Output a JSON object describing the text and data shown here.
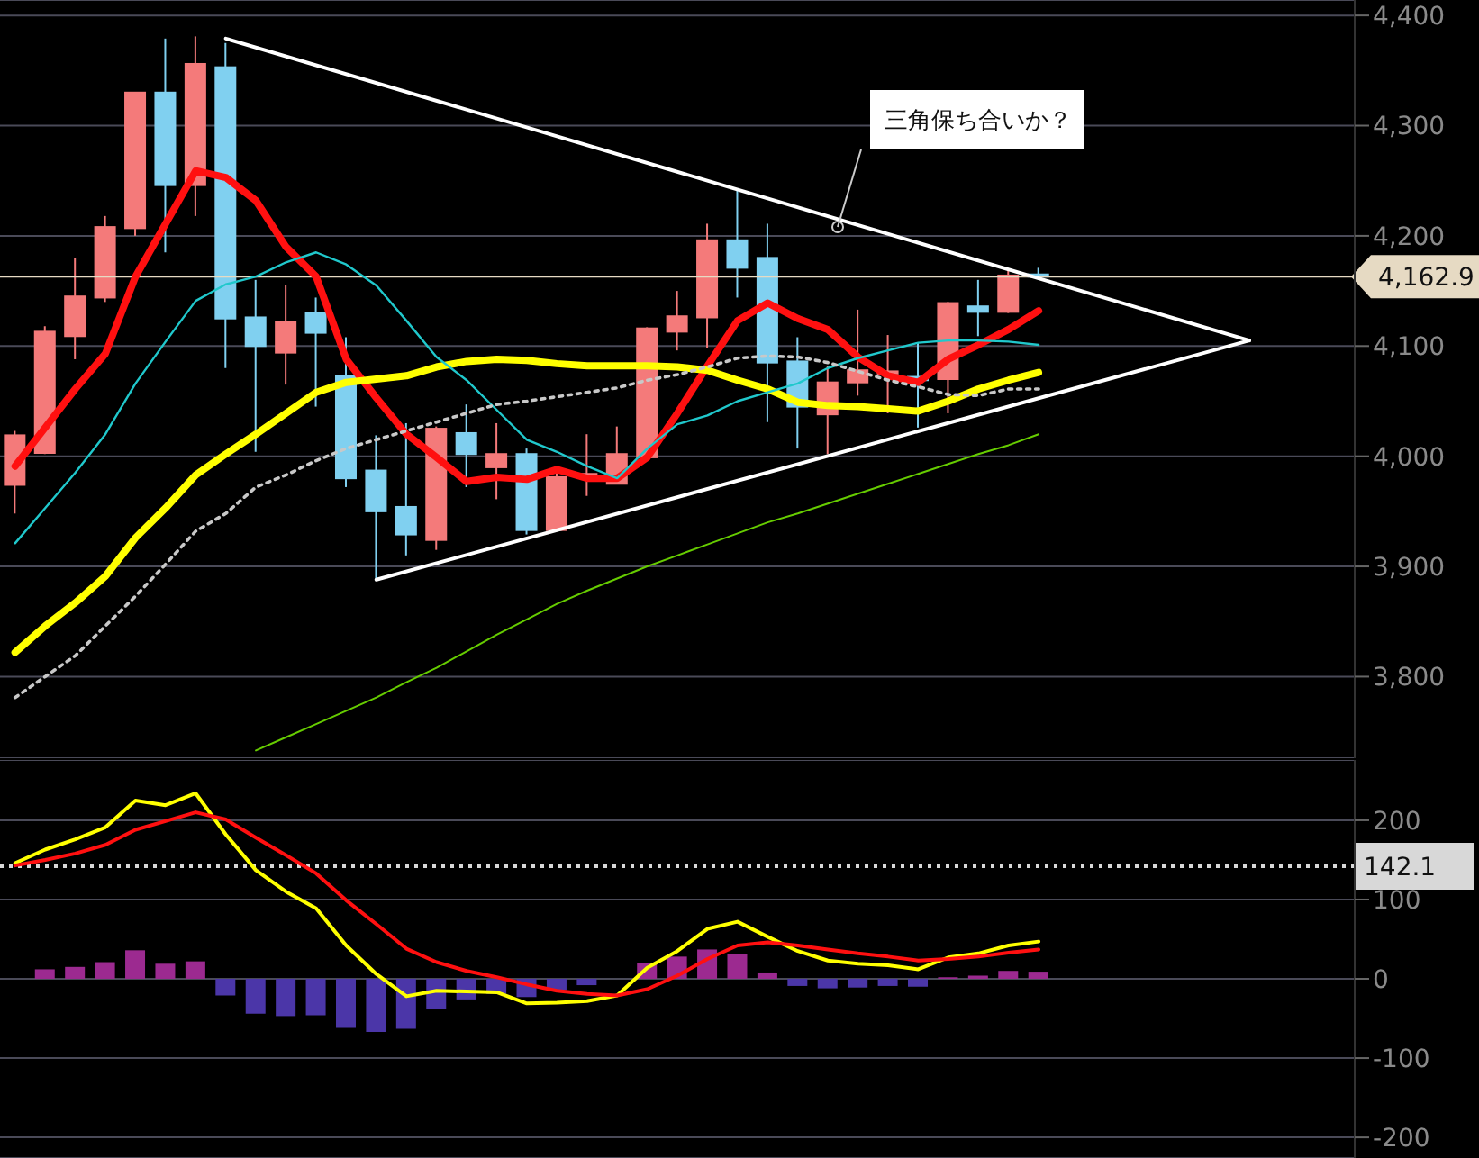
{
  "chart_data": [
    {
      "type": "candlestick",
      "categories": [
        null,
        null,
        null,
        null,
        null,
        null,
        null,
        null,
        null,
        null,
        null,
        null,
        null,
        null,
        null,
        null,
        null,
        null,
        null,
        null,
        null,
        null,
        null,
        null,
        null,
        null,
        null,
        null,
        null,
        null,
        null,
        null,
        null,
        null,
        null,
        null,
        null,
        null,
        null,
        null,
        null,
        null,
        null,
        null,
        null
      ],
      "ohlc": [
        [
          3974,
          4023,
          3948,
          4019
        ],
        [
          4003,
          4118,
          4002,
          4113
        ],
        [
          4109,
          4180,
          4088,
          4145
        ],
        [
          4144,
          4218,
          4140,
          4208
        ],
        [
          4207,
          4330,
          4200,
          4330
        ],
        [
          4330,
          4379,
          4185,
          4246
        ],
        [
          4246,
          4381,
          4218,
          4356
        ],
        [
          4353,
          4375,
          4080,
          4125
        ],
        [
          4126,
          4160,
          4004,
          4100
        ],
        [
          4094,
          4155,
          4065,
          4122
        ],
        [
          4130,
          4144,
          4045,
          4112
        ],
        [
          4073,
          4108,
          3972,
          3980
        ],
        [
          3987,
          4019,
          3888,
          3950
        ],
        [
          3954,
          4030,
          3910,
          3929
        ],
        [
          3924,
          4027,
          3915,
          4025
        ],
        [
          4021,
          4047,
          3972,
          4002
        ],
        [
          3990,
          4030,
          3961,
          4002
        ],
        [
          4002,
          4007,
          3929,
          3933
        ],
        [
          3933,
          3985,
          3932,
          3981
        ],
        [
          3982,
          4020,
          3964,
          3984
        ],
        [
          3975,
          4027,
          3975,
          4002
        ],
        [
          3999,
          4117,
          3999,
          4116
        ],
        [
          4113,
          4150,
          4096,
          4127
        ],
        [
          4126,
          4211,
          4098,
          4196
        ],
        [
          4196,
          4241,
          4144,
          4171
        ],
        [
          4180,
          4211,
          4031,
          4085
        ],
        [
          4086,
          4108,
          4007,
          4045
        ],
        [
          4038,
          4082,
          4002,
          4067
        ],
        [
          4067,
          4133,
          4055,
          4078
        ],
        [
          4075,
          4110,
          4039,
          4077
        ],
        [
          4072,
          4103,
          4026,
          4069
        ],
        [
          4070,
          4140,
          4039,
          4139
        ],
        [
          4136,
          4160,
          4109,
          4131
        ],
        [
          4131,
          4170,
          4130,
          4164
        ],
        [
          4165,
          4171,
          4162,
          4163
        ],
        null,
        null,
        null,
        null,
        null,
        null,
        null,
        null,
        null,
        null
      ],
      "series": [
        {
          "type": "line",
          "color": "#ff1010",
          "values": [
            3991,
            4026,
            4061,
            4093,
            4163,
            4211,
            4259,
            4253,
            4232,
            4190,
            4163,
            4088,
            4053,
            4020,
            3999,
            3977,
            3981,
            3979,
            3988,
            3980,
            3980,
            3999,
            4039,
            4082,
            4123,
            4139,
            4125,
            4115,
            4090,
            4073,
            4067,
            4088,
            4101,
            4115,
            4132,
            null,
            null,
            null,
            null,
            null,
            null,
            null,
            null,
            null,
            null
          ]
        },
        {
          "type": "line",
          "color": "#ffff00",
          "values": [
            3822,
            3846,
            3867,
            3891,
            3926,
            3953,
            3983,
            4002,
            4020,
            4039,
            4058,
            4067,
            4070,
            4073,
            4081,
            4086,
            4088,
            4087,
            4084,
            4082,
            4082,
            4082,
            4081,
            4078,
            4069,
            4061,
            4049,
            4046,
            4045,
            4043,
            4041,
            4050,
            4061,
            4069,
            4076,
            null,
            null,
            null,
            null,
            null,
            null,
            null,
            null,
            null,
            null
          ]
        },
        {
          "type": "line",
          "color": "#20c8cc",
          "values": [
            3921,
            3953,
            3985,
            4020,
            4066,
            4104,
            4141,
            4156,
            4163,
            4176,
            4185,
            4174,
            4155,
            4123,
            4090,
            4069,
            4042,
            4015,
            4004,
            3991,
            3980,
            4007,
            4029,
            4037,
            4050,
            4058,
            4066,
            4080,
            4089,
            4096,
            4103,
            4105,
            4105,
            4104,
            4101,
            null,
            null,
            null,
            null,
            null,
            null,
            null,
            null,
            null,
            null
          ]
        },
        {
          "type": "line",
          "color": "#c8c8c8",
          "line_style": "dotted",
          "values": [
            3781,
            3800,
            3819,
            3846,
            3873,
            3902,
            3932,
            3948,
            3972,
            3983,
            3996,
            4007,
            4015,
            4023,
            4031,
            4039,
            4047,
            4050,
            4054,
            4058,
            4062,
            4069,
            4074,
            4081,
            4089,
            4091,
            4090,
            4085,
            4077,
            4069,
            4063,
            4056,
            4055,
            4061,
            4061,
            null,
            null,
            null,
            null,
            null,
            null,
            null,
            null,
            null,
            null
          ]
        },
        {
          "type": "line",
          "color": "#66cc00",
          "values": [
            null,
            null,
            null,
            null,
            null,
            null,
            null,
            null,
            3733,
            3745,
            3757,
            3769,
            3781,
            3795,
            3808,
            3823,
            3838,
            3852,
            3866,
            3878,
            3889,
            3900,
            3910,
            3920,
            3930,
            3940,
            3948,
            3957,
            3966,
            3975,
            3984,
            3993,
            4002,
            4010,
            4020,
            null,
            null,
            null,
            null,
            null,
            null,
            null,
            null,
            null,
            null
          ]
        },
        {
          "type": "line",
          "color": "#ffffff",
          "values": [
            null,
            null,
            null,
            null,
            null,
            null,
            null,
            4379,
            null,
            null,
            null,
            null,
            null,
            null,
            null,
            null,
            null,
            null,
            null,
            null,
            null,
            null,
            null,
            null,
            null,
            null,
            null,
            null,
            null,
            null,
            null,
            null,
            null,
            null,
            null,
            null,
            null,
            null,
            null,
            null,
            null,
            4105,
            null,
            null,
            null
          ]
        },
        {
          "type": "line",
          "color": "#ffffff",
          "values": [
            null,
            null,
            null,
            null,
            null,
            null,
            null,
            null,
            null,
            null,
            null,
            null,
            3888,
            null,
            null,
            null,
            null,
            null,
            null,
            null,
            null,
            null,
            null,
            null,
            null,
            null,
            null,
            null,
            null,
            null,
            null,
            null,
            null,
            null,
            null,
            null,
            null,
            null,
            null,
            null,
            null,
            4105,
            null,
            null,
            null
          ]
        }
      ],
      "ylim": [
        3726,
        4414
      ],
      "yticks": [
        {
          "value": 3800,
          "label": "3,800"
        },
        {
          "value": 3900,
          "label": "3,900"
        },
        {
          "value": 4000,
          "label": "4,000"
        },
        {
          "value": 4100,
          "label": "4,100"
        },
        {
          "value": 4200,
          "label": "4,200"
        },
        {
          "value": 4300,
          "label": "4,300"
        },
        {
          "value": 4400,
          "label": "4,400"
        }
      ],
      "ref_lines": [
        {
          "axis": "y",
          "value": 4162.9,
          "label": "4,162.9",
          "color": "#e6dac3",
          "line_style": "solid"
        }
      ],
      "annotations": [
        "三角保ち合いか？"
      ],
      "grid": "y",
      "legend": false,
      "marker": "none",
      "tick_labels": "y"
    },
    {
      "type": "bar",
      "categories": [
        null,
        null,
        null,
        null,
        null,
        null,
        null,
        null,
        null,
        null,
        null,
        null,
        null,
        null,
        null,
        null,
        null,
        null,
        null,
        null,
        null,
        null,
        null,
        null,
        null,
        null,
        null,
        null,
        null,
        null,
        null,
        null,
        null,
        null,
        null,
        null,
        null,
        null,
        null,
        null,
        null,
        null,
        null,
        null,
        null
      ],
      "series": [
        {
          "type": "bar",
          "colors": [
            "#9c2a90",
            "#9c2a90",
            "#9c2a90",
            "#9c2a90",
            "#9c2a90",
            "#9c2a90",
            "#9c2a90",
            "#4b36a8",
            "#4b36a8",
            "#4b36a8",
            "#4b36a8",
            "#4b36a8",
            "#4b36a8",
            "#4b36a8",
            "#4b36a8",
            "#4b36a8",
            "#4b36a8",
            "#4b36a8",
            "#4b36a8",
            "#4b36a8",
            "#9c2a90",
            "#9c2a90",
            "#9c2a90",
            "#9c2a90",
            "#9c2a90",
            "#9c2a90",
            "#4b36a8",
            "#4b36a8",
            "#4b36a8",
            "#4b36a8",
            "#4b36a8",
            "#9c2a90",
            "#9c2a90",
            "#9c2a90",
            "#9c2a90",
            null,
            null,
            null,
            null,
            null,
            null,
            null,
            null,
            null,
            null
          ],
          "values": [
            0,
            12,
            15,
            21,
            36,
            19,
            22,
            -21,
            -44,
            -47,
            -46,
            -62,
            -67,
            -63,
            -38,
            -26,
            -19,
            -23,
            -14,
            -8,
            0,
            20,
            28,
            37,
            31,
            8,
            -9,
            -12,
            -11,
            -9,
            -10,
            2,
            4,
            10,
            9,
            null,
            null,
            null,
            null,
            null,
            null,
            null,
            null,
            null,
            null
          ]
        },
        {
          "type": "line",
          "color": "#ffff00",
          "values": [
            146,
            163,
            176,
            191,
            225,
            219,
            234,
            182,
            137,
            110,
            89,
            42,
            6,
            -22,
            -15,
            -16,
            -17,
            -31,
            -30,
            -28,
            -21,
            14,
            35,
            63,
            72,
            53,
            35,
            23,
            19,
            17,
            12,
            27,
            32,
            42,
            47,
            null,
            null,
            null,
            null,
            null,
            null,
            null,
            null,
            null,
            null
          ]
        },
        {
          "type": "line",
          "color": "#ff1010",
          "values": [
            143,
            150,
            158,
            169,
            188,
            199,
            210,
            201,
            178,
            156,
            133,
            99,
            69,
            38,
            21,
            10,
            2,
            -7,
            -15,
            -19,
            -21,
            -13,
            4,
            25,
            42,
            46,
            42,
            37,
            32,
            28,
            23,
            25,
            28,
            33,
            37,
            null,
            null,
            null,
            null,
            null,
            null,
            null,
            null,
            null,
            null
          ]
        }
      ],
      "ylim": [
        -226,
        276
      ],
      "yticks": [
        -200,
        -100,
        0,
        100,
        200
      ],
      "ref_lines": [
        {
          "axis": "y",
          "value": 142.1,
          "label": "142.1",
          "color": "#d8d8d8",
          "line_style": "dotted"
        }
      ],
      "grid": "y",
      "legend": false,
      "marker": "none",
      "tick_labels": "y"
    }
  ]
}
